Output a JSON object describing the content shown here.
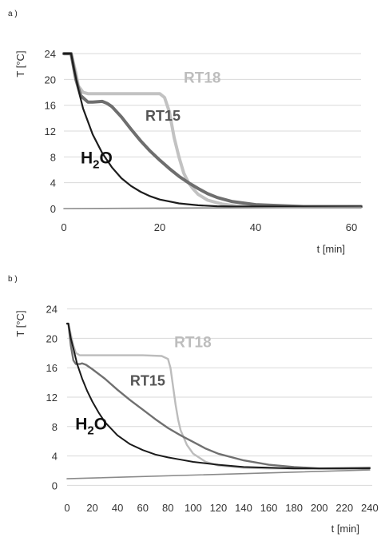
{
  "chart_data": [
    {
      "type": "line",
      "panel_label": "a )",
      "xlabel": "t [min]",
      "ylabel": "T [°C]",
      "xlim": [
        0,
        62
      ],
      "ylim": [
        -0.5,
        25.5
      ],
      "xticks": [
        0,
        20,
        40,
        60
      ],
      "yticks": [
        0,
        4,
        8,
        12,
        16,
        20,
        24
      ],
      "grid": "horizontal",
      "series": [
        {
          "name": "RT18",
          "color": "#c2c2c2",
          "width": 4,
          "label_style": "bold-gray",
          "x": [
            0,
            1.5,
            2.5,
            3,
            4,
            5,
            8,
            12,
            16,
            20,
            21,
            22,
            23,
            24,
            25,
            26,
            27,
            28,
            30,
            33,
            36,
            40,
            50,
            62
          ],
          "y": [
            24,
            24,
            21,
            19,
            18,
            17.8,
            17.8,
            17.8,
            17.8,
            17.8,
            17.2,
            15,
            11,
            8,
            5.5,
            4,
            3,
            2.2,
            1.3,
            0.7,
            0.4,
            0.3,
            0.3,
            0.3
          ]
        },
        {
          "name": "RT15",
          "color": "#6e6e6e",
          "width": 4,
          "label_style": "bold-dark",
          "x": [
            0,
            1.5,
            2.5,
            3.5,
            5,
            6,
            8,
            9,
            10,
            12,
            14,
            16,
            18,
            20,
            22,
            24,
            26,
            28,
            30,
            32,
            35,
            40,
            50,
            62
          ],
          "y": [
            24,
            24,
            20,
            17.5,
            16.5,
            16.5,
            16.6,
            16.3,
            15.8,
            14.2,
            12.3,
            10.5,
            8.9,
            7.5,
            6.2,
            5.0,
            4.0,
            3.1,
            2.3,
            1.7,
            1.1,
            0.6,
            0.3,
            0.3
          ]
        },
        {
          "name": "H2O",
          "color": "#1c1c1c",
          "width": 2.2,
          "label_style": "bold-black-sub",
          "x": [
            0,
            1.5,
            2,
            3,
            4,
            6,
            8,
            10,
            12,
            14,
            16,
            18,
            20,
            24,
            28,
            32,
            36,
            40,
            50,
            62
          ],
          "y": [
            24,
            24,
            22,
            18.5,
            15.5,
            11.5,
            8.6,
            6.4,
            4.7,
            3.5,
            2.6,
            1.9,
            1.4,
            0.8,
            0.5,
            0.35,
            0.3,
            0.3,
            0.3,
            0.3
          ]
        },
        {
          "name": "",
          "color": "#8a8a8a",
          "width": 1.6,
          "x": [
            0,
            62
          ],
          "y": [
            0,
            0.2
          ]
        }
      ],
      "annotations": [
        {
          "text": "RT18",
          "x": 25,
          "y": 19.5,
          "color": "#bdbdbd",
          "size": 19
        },
        {
          "text": "RT15",
          "x": 17,
          "y": 13.6,
          "color": "#555555",
          "size": 18
        },
        {
          "text": "H2O",
          "x": 3.5,
          "y": 7.0,
          "color": "#111111",
          "size": 21,
          "subscript_after": 1
        }
      ]
    },
    {
      "type": "line",
      "panel_label": "b )",
      "xlabel": "t [min]",
      "ylabel": "T [°C]",
      "xlim": [
        0,
        242
      ],
      "ylim": [
        -0.5,
        24.5
      ],
      "xticks": [
        0,
        20,
        40,
        60,
        80,
        100,
        120,
        140,
        160,
        180,
        200,
        220,
        240
      ],
      "yticks": [
        0,
        4,
        8,
        12,
        16,
        20,
        24
      ],
      "grid": "horizontal",
      "series": [
        {
          "name": "RT18",
          "color": "#bcbcbc",
          "width": 2.4,
          "x": [
            0,
            1,
            3,
            5,
            7,
            9,
            10,
            20,
            40,
            60,
            75,
            80,
            82,
            84,
            86,
            88,
            90,
            95,
            100,
            110,
            120,
            140,
            160,
            180,
            200,
            220,
            240
          ],
          "y": [
            22,
            22,
            20.5,
            19,
            18,
            17.8,
            17.7,
            17.7,
            17.7,
            17.7,
            17.6,
            17.2,
            16,
            13.5,
            11,
            9,
            7.5,
            5.5,
            4.3,
            3.2,
            2.7,
            2.4,
            2.3,
            2.3,
            2.3,
            2.4,
            2.4
          ]
        },
        {
          "name": "RT15",
          "color": "#707070",
          "width": 2.4,
          "x": [
            0,
            1,
            3,
            5,
            7,
            10,
            12,
            15,
            20,
            30,
            40,
            50,
            60,
            70,
            80,
            90,
            100,
            110,
            120,
            140,
            160,
            180,
            200,
            220,
            240
          ],
          "y": [
            22,
            22,
            19,
            17,
            16.5,
            16.5,
            16.6,
            16.4,
            15.8,
            14.5,
            13.0,
            11.6,
            10.3,
            9.0,
            7.8,
            6.8,
            5.9,
            5.0,
            4.3,
            3.4,
            2.8,
            2.5,
            2.3,
            2.3,
            2.4
          ]
        },
        {
          "name": "H2O",
          "color": "#1a1a1a",
          "width": 2.0,
          "x": [
            0,
            1,
            3,
            5,
            8,
            12,
            16,
            20,
            25,
            30,
            40,
            50,
            60,
            70,
            80,
            90,
            100,
            120,
            140,
            160,
            180,
            200,
            220,
            240
          ],
          "y": [
            22,
            22,
            20,
            18.6,
            16.5,
            14.5,
            12.8,
            11.4,
            9.9,
            8.6,
            6.8,
            5.6,
            4.8,
            4.2,
            3.8,
            3.5,
            3.2,
            2.8,
            2.5,
            2.4,
            2.3,
            2.3,
            2.3,
            2.3
          ]
        },
        {
          "name": "",
          "color": "#8a8a8a",
          "width": 1.6,
          "x": [
            0,
            240
          ],
          "y": [
            0.9,
            2.1
          ]
        }
      ],
      "annotations": [
        {
          "text": "RT18",
          "x": 85,
          "y": 18.8,
          "color": "#bdbdbd",
          "size": 19
        },
        {
          "text": "RT15",
          "x": 50,
          "y": 13.6,
          "color": "#555555",
          "size": 18
        },
        {
          "text": "H2O",
          "x": 6.5,
          "y": 7.6,
          "color": "#111111",
          "size": 21,
          "subscript_after": 1
        }
      ]
    }
  ]
}
